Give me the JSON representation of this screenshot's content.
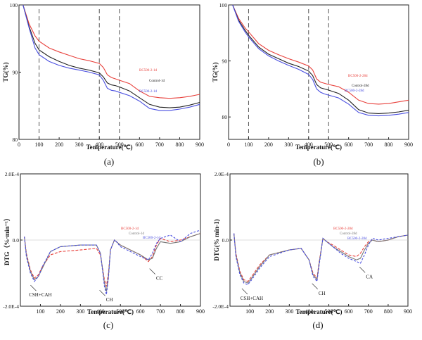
{
  "panels": [
    {
      "id": "a",
      "caption": "(a)",
      "chart_data": {
        "type": "line",
        "xlabel": "Temperature(℃)",
        "ylabel": "TG(%)",
        "xlim": [
          0,
          900
        ],
        "ylim": [
          80,
          100
        ],
        "xticks": [
          0,
          100,
          200,
          300,
          400,
          500,
          600,
          700,
          800,
          900
        ],
        "yticks": [
          80,
          90,
          100
        ],
        "ytick_labels": [
          "80",
          "90",
          "100"
        ],
        "vlines": [
          100,
          400,
          500
        ],
        "series": [
          {
            "name": "BC500-2-1d",
            "color": "#e8413c",
            "x": [
              20,
              50,
              80,
              100,
              150,
              200,
              250,
              300,
              350,
              400,
              420,
              440,
              460,
              480,
              500,
              550,
              600,
              650,
              700,
              750,
              800,
              850,
              900
            ],
            "y": [
              100,
              97.2,
              95.4,
              94.6,
              93.6,
              93.0,
              92.5,
              92.0,
              91.7,
              91.3,
              90.7,
              89.6,
              89.2,
              89.0,
              88.8,
              88.3,
              87.2,
              86.4,
              86.2,
              86.1,
              86.2,
              86.4,
              86.7
            ]
          },
          {
            "name": "Control-1d",
            "color": "#222222",
            "x": [
              20,
              50,
              80,
              100,
              150,
              200,
              250,
              300,
              350,
              400,
              420,
              440,
              460,
              480,
              500,
              550,
              600,
              650,
              700,
              750,
              800,
              850,
              900
            ],
            "y": [
              100,
              96.8,
              94.3,
              93.3,
              92.3,
              91.6,
              91.0,
              90.6,
              90.3,
              89.9,
              89.3,
              88.4,
              88.1,
              88.0,
              87.8,
              87.2,
              86.2,
              85.2,
              84.8,
              84.7,
              84.8,
              85.1,
              85.5
            ]
          },
          {
            "name": "BC500-2-1d",
            "color": "#4a4fe0",
            "x": [
              20,
              50,
              80,
              100,
              150,
              200,
              250,
              300,
              350,
              400,
              420,
              440,
              460,
              480,
              500,
              550,
              600,
              650,
              700,
              750,
              800,
              850,
              900
            ],
            "y": [
              100,
              96.6,
              93.6,
              92.6,
              91.6,
              91.0,
              90.6,
              90.3,
              90.0,
              89.6,
              88.8,
              87.6,
              87.3,
              87.2,
              87.0,
              86.5,
              85.7,
              84.6,
              84.3,
              84.3,
              84.5,
              84.8,
              85.2
            ]
          }
        ],
        "legend": "inline-right"
      }
    },
    {
      "id": "b",
      "caption": "(b)",
      "chart_data": {
        "type": "line",
        "xlabel": "Temperature(℃)",
        "ylabel": "TG(%)",
        "xlim": [
          0,
          900
        ],
        "ylim": [
          76,
          100
        ],
        "xticks": [
          0,
          100,
          200,
          300,
          400,
          500,
          600,
          700,
          800,
          900
        ],
        "yticks": [
          80,
          90,
          100
        ],
        "ytick_labels": [
          "80",
          "90",
          "100"
        ],
        "vlines": [
          100,
          400,
          500
        ],
        "series": [
          {
            "name": "BC500-2-28d",
            "color": "#e8413c",
            "x": [
              20,
              50,
              80,
              100,
              150,
              200,
              250,
              300,
              350,
              400,
              420,
              440,
              460,
              480,
              500,
              550,
              600,
              650,
              700,
              750,
              800,
              850,
              900
            ],
            "y": [
              100,
              97.6,
              96.0,
              95.2,
              93.1,
              91.9,
              91.1,
              90.4,
              89.8,
              89.1,
              88.4,
              86.8,
              86.2,
              86.0,
              85.8,
              85.4,
              84.4,
              83.0,
              82.4,
              82.3,
              82.4,
              82.7,
              83.0
            ]
          },
          {
            "name": "Control-28d",
            "color": "#222222",
            "x": [
              20,
              50,
              80,
              100,
              150,
              200,
              250,
              300,
              350,
              400,
              420,
              440,
              460,
              480,
              500,
              550,
              600,
              650,
              700,
              750,
              800,
              850,
              900
            ],
            "y": [
              100,
              97.3,
              95.6,
              94.6,
              92.5,
              91.2,
              90.4,
              89.6,
              89.0,
              88.2,
              87.4,
              85.8,
              85.2,
              85.0,
              84.8,
              84.2,
              83.0,
              81.3,
              80.7,
              80.6,
              80.7,
              80.9,
              81.2
            ]
          },
          {
            "name": "BC500-2-28d",
            "color": "#4a4fe0",
            "x": [
              20,
              50,
              80,
              100,
              150,
              200,
              250,
              300,
              350,
              400,
              420,
              440,
              460,
              480,
              500,
              550,
              600,
              650,
              700,
              750,
              800,
              850,
              900
            ],
            "y": [
              100,
              97.1,
              95.3,
              94.3,
              92.2,
              90.9,
              90.0,
              89.2,
              88.5,
              87.6,
              86.7,
              85.0,
              84.4,
              84.1,
              83.9,
              83.4,
              82.3,
              80.8,
              80.3,
              80.2,
              80.3,
              80.5,
              80.8
            ]
          }
        ],
        "legend": "inline-right"
      }
    },
    {
      "id": "c",
      "caption": "(c)",
      "chart_data": {
        "type": "line",
        "xlabel": "Temperature(℃)",
        "ylabel": "DTG（%·min⁻¹）",
        "xlim": [
          0,
          900
        ],
        "ylim": [
          -2.0,
          2.0
        ],
        "xticks": [
          100,
          200,
          300,
          400,
          500,
          600,
          700,
          800,
          900
        ],
        "yticks": [
          -2.0,
          0.0,
          2.0
        ],
        "ytick_labels": [
          "-2.0E-4",
          "0.0",
          "2.0E-4"
        ],
        "series": [
          {
            "name": "BC500-2-1d",
            "color": "#e8413c",
            "x": [
              20,
              30,
              50,
              70,
              90,
              110,
              150,
              200,
              300,
              380,
              400,
              420,
              430,
              440,
              450,
              470,
              480,
              500,
              550,
              600,
              640,
              660,
              680,
              700,
              750,
              800,
              850,
              900
            ],
            "y": [
              0.1,
              -0.4,
              -0.9,
              -1.15,
              -1.05,
              -0.8,
              -0.45,
              -0.35,
              -0.3,
              -0.25,
              -0.45,
              -1.2,
              -1.4,
              -1.0,
              -0.3,
              0.0,
              -0.05,
              -0.15,
              -0.3,
              -0.45,
              -0.65,
              -0.5,
              -0.15,
              0.05,
              -0.05,
              0.0,
              0.1,
              0.2
            ]
          },
          {
            "name": "Control-1d",
            "color": "#777777",
            "x": [
              20,
              30,
              50,
              70,
              90,
              110,
              150,
              200,
              300,
              380,
              400,
              420,
              430,
              440,
              450,
              470,
              480,
              500,
              550,
              600,
              640,
              660,
              680,
              700,
              750,
              800,
              850,
              900
            ],
            "y": [
              0.1,
              -0.45,
              -0.95,
              -1.2,
              -1.1,
              -0.85,
              -0.35,
              -0.2,
              -0.15,
              -0.15,
              -0.4,
              -1.3,
              -1.55,
              -1.1,
              -0.3,
              0.0,
              -0.05,
              -0.15,
              -0.3,
              -0.45,
              -0.6,
              -0.55,
              -0.25,
              -0.05,
              -0.1,
              -0.05,
              0.1,
              0.2
            ]
          },
          {
            "name": "BC500-2-1d",
            "color": "#4a4fe0",
            "x": [
              20,
              30,
              50,
              70,
              90,
              110,
              150,
              200,
              300,
              380,
              400,
              420,
              430,
              440,
              450,
              470,
              480,
              500,
              550,
              600,
              640,
              660,
              680,
              700,
              750,
              800,
              850,
              900
            ],
            "y": [
              0.1,
              -0.5,
              -1.0,
              -1.25,
              -1.1,
              -0.8,
              -0.35,
              -0.2,
              -0.15,
              -0.15,
              -0.4,
              -1.4,
              -1.65,
              -1.15,
              -0.3,
              0.0,
              -0.05,
              -0.2,
              -0.35,
              -0.5,
              -0.6,
              -0.4,
              -0.1,
              0.05,
              0.15,
              -0.05,
              0.2,
              0.3
            ]
          }
        ],
        "annotations": [
          {
            "text": "CSH+CAH",
            "x": 100,
            "y": -1.45
          },
          {
            "text": "CH",
            "x": 445,
            "y": -1.6
          },
          {
            "text": "CC",
            "x": 695,
            "y": -0.95
          }
        ],
        "legend": "inline-right"
      }
    },
    {
      "id": "d",
      "caption": "(d)",
      "chart_data": {
        "type": "line",
        "xlabel": "Temperature(℃)",
        "ylabel": "DTG(% min-1)",
        "xlim": [
          0,
          900
        ],
        "ylim": [
          -2.0,
          2.0
        ],
        "xticks": [
          100,
          200,
          300,
          400,
          500,
          600,
          700,
          800,
          900
        ],
        "yticks": [
          -2.0,
          0.0,
          2.0
        ],
        "ytick_labels": [
          "-2.0E-4",
          "0.0",
          "2.0E-4"
        ],
        "series": [
          {
            "name": "BC500-2-28d",
            "color": "#e8413c",
            "x": [
              20,
              30,
              50,
              70,
              90,
              110,
              150,
              200,
              300,
              360,
              400,
              420,
              440,
              450,
              470,
              490,
              520,
              560,
              600,
              640,
              660,
              680,
              700,
              720,
              750,
              800,
              850,
              900
            ],
            "y": [
              0.2,
              -0.4,
              -0.95,
              -1.2,
              -1.25,
              -1.1,
              -0.75,
              -0.45,
              -0.3,
              -0.25,
              -0.6,
              -1.0,
              -1.15,
              -0.7,
              0.05,
              -0.05,
              -0.15,
              -0.3,
              -0.45,
              -0.5,
              -0.4,
              -0.2,
              -0.05,
              0.0,
              -0.05,
              0.0,
              0.1,
              0.15
            ]
          },
          {
            "name": "Control-28d",
            "color": "#777777",
            "x": [
              20,
              30,
              50,
              70,
              90,
              110,
              150,
              200,
              300,
              360,
              400,
              420,
              440,
              450,
              470,
              490,
              520,
              560,
              600,
              640,
              660,
              680,
              700,
              720,
              750,
              800,
              850,
              900
            ],
            "y": [
              0.2,
              -0.45,
              -1.0,
              -1.25,
              -1.3,
              -1.15,
              -0.8,
              -0.45,
              -0.3,
              -0.25,
              -0.6,
              -1.05,
              -1.2,
              -0.75,
              0.05,
              -0.05,
              -0.2,
              -0.35,
              -0.5,
              -0.6,
              -0.55,
              -0.3,
              -0.1,
              0.0,
              -0.05,
              0.0,
              0.1,
              0.15
            ]
          },
          {
            "name": "BC500-2-28d",
            "color": "#4a4fe0",
            "x": [
              20,
              30,
              50,
              70,
              90,
              110,
              150,
              200,
              300,
              360,
              400,
              420,
              440,
              450,
              470,
              490,
              520,
              560,
              600,
              640,
              660,
              680,
              700,
              720,
              750,
              800,
              850,
              900
            ],
            "y": [
              0.2,
              -0.5,
              -1.05,
              -1.3,
              -1.35,
              -1.2,
              -0.85,
              -0.5,
              -0.3,
              -0.25,
              -0.6,
              -1.1,
              -1.25,
              -0.8,
              0.05,
              -0.05,
              -0.2,
              -0.4,
              -0.55,
              -0.65,
              -0.7,
              -0.45,
              -0.15,
              0.05,
              0.0,
              0.05,
              0.1,
              0.15
            ]
          }
        ],
        "annotations": [
          {
            "text": "CSH+CAH",
            "x": 110,
            "y": -1.55
          },
          {
            "text": "CH",
            "x": 465,
            "y": -1.4
          },
          {
            "text": "CA",
            "x": 705,
            "y": -0.9
          }
        ],
        "legend": "inline-right"
      }
    }
  ]
}
